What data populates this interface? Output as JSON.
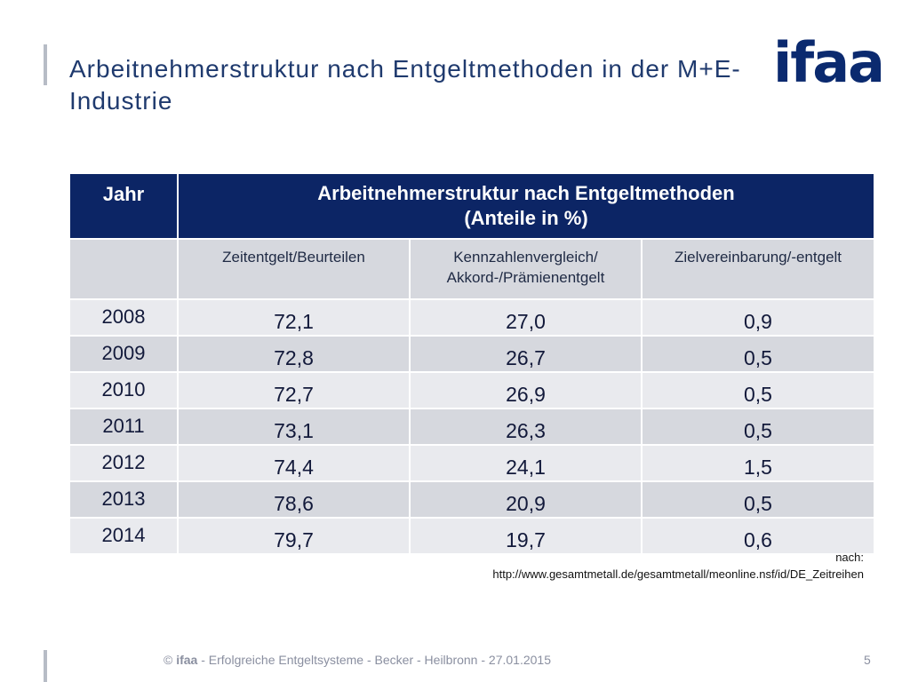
{
  "slide": {
    "title": "Arbeitnehmerstruktur nach Entgeltmethoden in der M+E-Industrie",
    "logo_text": "ifaa"
  },
  "table": {
    "header": {
      "year_label": "Jahr",
      "group_title": "Arbeitnehmerstruktur nach Entgeltmethoden",
      "group_subtitle": "(Anteile in %)"
    },
    "columns": [
      {
        "line1": "Zeitentgelt/Beurteilen",
        "line2": ""
      },
      {
        "line1": "Kennzahlenvergleich/",
        "line2": "Akkord-/Prämienentgelt"
      },
      {
        "line1": "Zielvereinbarung/-entgelt",
        "line2": ""
      }
    ],
    "rows": [
      {
        "year": "2008",
        "values": [
          "72,1",
          "27,0",
          "0,9"
        ]
      },
      {
        "year": "2009",
        "values": [
          "72,8",
          "26,7",
          "0,5"
        ]
      },
      {
        "year": "2010",
        "values": [
          "72,7",
          "26,9",
          "0,5"
        ]
      },
      {
        "year": "2011",
        "values": [
          "73,1",
          "26,3",
          "0,5"
        ]
      },
      {
        "year": "2012",
        "values": [
          "74,4",
          "24,1",
          "1,5"
        ]
      },
      {
        "year": "2013",
        "values": [
          "78,6",
          "20,9",
          "0,5"
        ]
      },
      {
        "year": "2014",
        "values": [
          "79,7",
          "19,7",
          "0,6"
        ]
      }
    ]
  },
  "source": {
    "prefix": "nach:",
    "url": "http://www.gesamtmetall.de/gesamtmetall/meonline.nsf/id/DE_Zeitreihen"
  },
  "footer": {
    "copyright_symbol": "©",
    "brand": "ifaa",
    "text": " - Erfolgreiche Entgeltsysteme - Becker - Heilbronn - 27.01.2015",
    "page_number": "5"
  },
  "colors": {
    "header_navy": "#0c2565",
    "title_blue": "#1f3a6e",
    "row_light": "#e9eaee",
    "row_dark": "#d6d8de"
  }
}
